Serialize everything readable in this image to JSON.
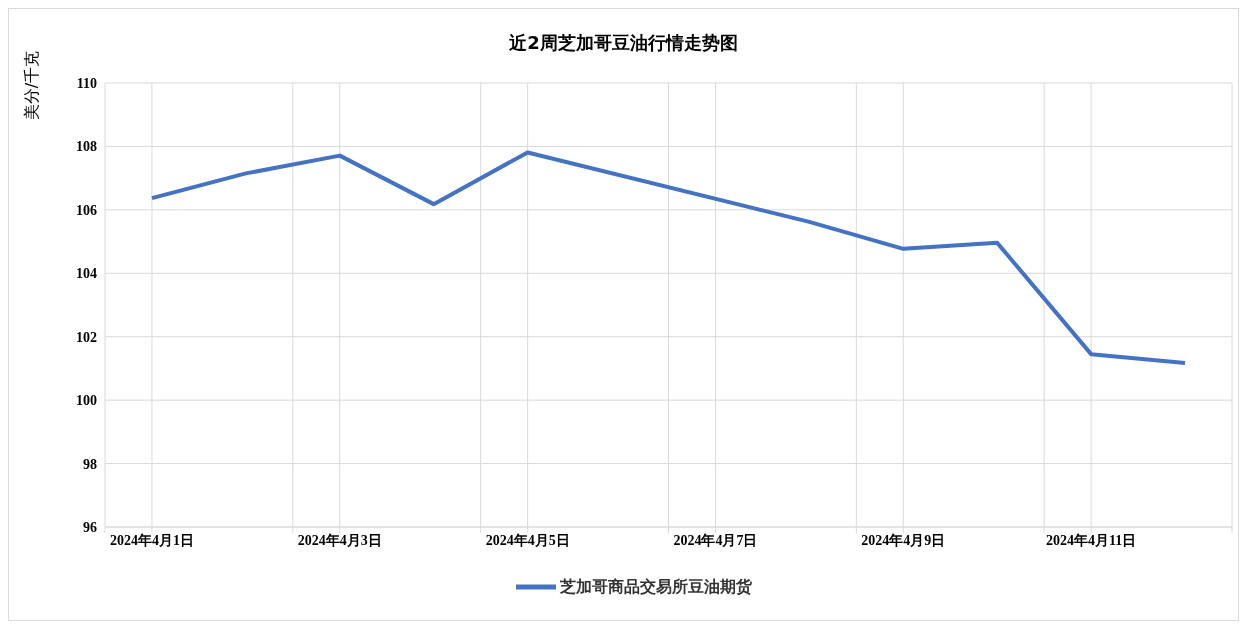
{
  "chart_data": {
    "type": "line",
    "title": "近2周芝加哥豆油行情走势图",
    "ylabel": "美分/千克",
    "x": [
      "2024-04-01",
      "2024-04-02",
      "2024-04-03",
      "2024-04-04",
      "2024-04-05",
      "2024-04-08",
      "2024-04-09",
      "2024-04-10",
      "2024-04-11",
      "2024-04-12"
    ],
    "series": [
      {
        "name": "芝加哥商品交易所豆油期货",
        "color": "#4472c4",
        "values": [
          106.37,
          107.15,
          107.71,
          106.18,
          107.81,
          105.62,
          104.77,
          104.96,
          101.45,
          101.17
        ]
      }
    ],
    "xlim": [
      "2024-03-31T12:00",
      "2024-04-12T12:00"
    ],
    "xticks": [
      {
        "value": "2024-03-31T12:00",
        "label": null
      },
      {
        "value": "2024-04-01",
        "label": "2024年4月1日"
      },
      {
        "value": "2024-04-02T12:00",
        "label": null
      },
      {
        "value": "2024-04-03",
        "label": "2024年4月3日"
      },
      {
        "value": "2024-04-04T12:00",
        "label": null
      },
      {
        "value": "2024-04-05",
        "label": "2024年4月5日"
      },
      {
        "value": "2024-04-06T12:00",
        "label": null
      },
      {
        "value": "2024-04-07",
        "label": "2024年4月7日"
      },
      {
        "value": "2024-04-08T12:00",
        "label": null
      },
      {
        "value": "2024-04-09",
        "label": "2024年4月9日"
      },
      {
        "value": "2024-04-10T12:00",
        "label": null
      },
      {
        "value": "2024-04-11",
        "label": "2024年4月11日"
      },
      {
        "value": "2024-04-12T12:00",
        "label": null
      }
    ],
    "ylim": [
      96,
      110
    ],
    "yticks": [
      96,
      98,
      100,
      102,
      104,
      106,
      108,
      110
    ],
    "grid": true,
    "legend": "bottom",
    "marker": "none",
    "line_style": "solid"
  }
}
